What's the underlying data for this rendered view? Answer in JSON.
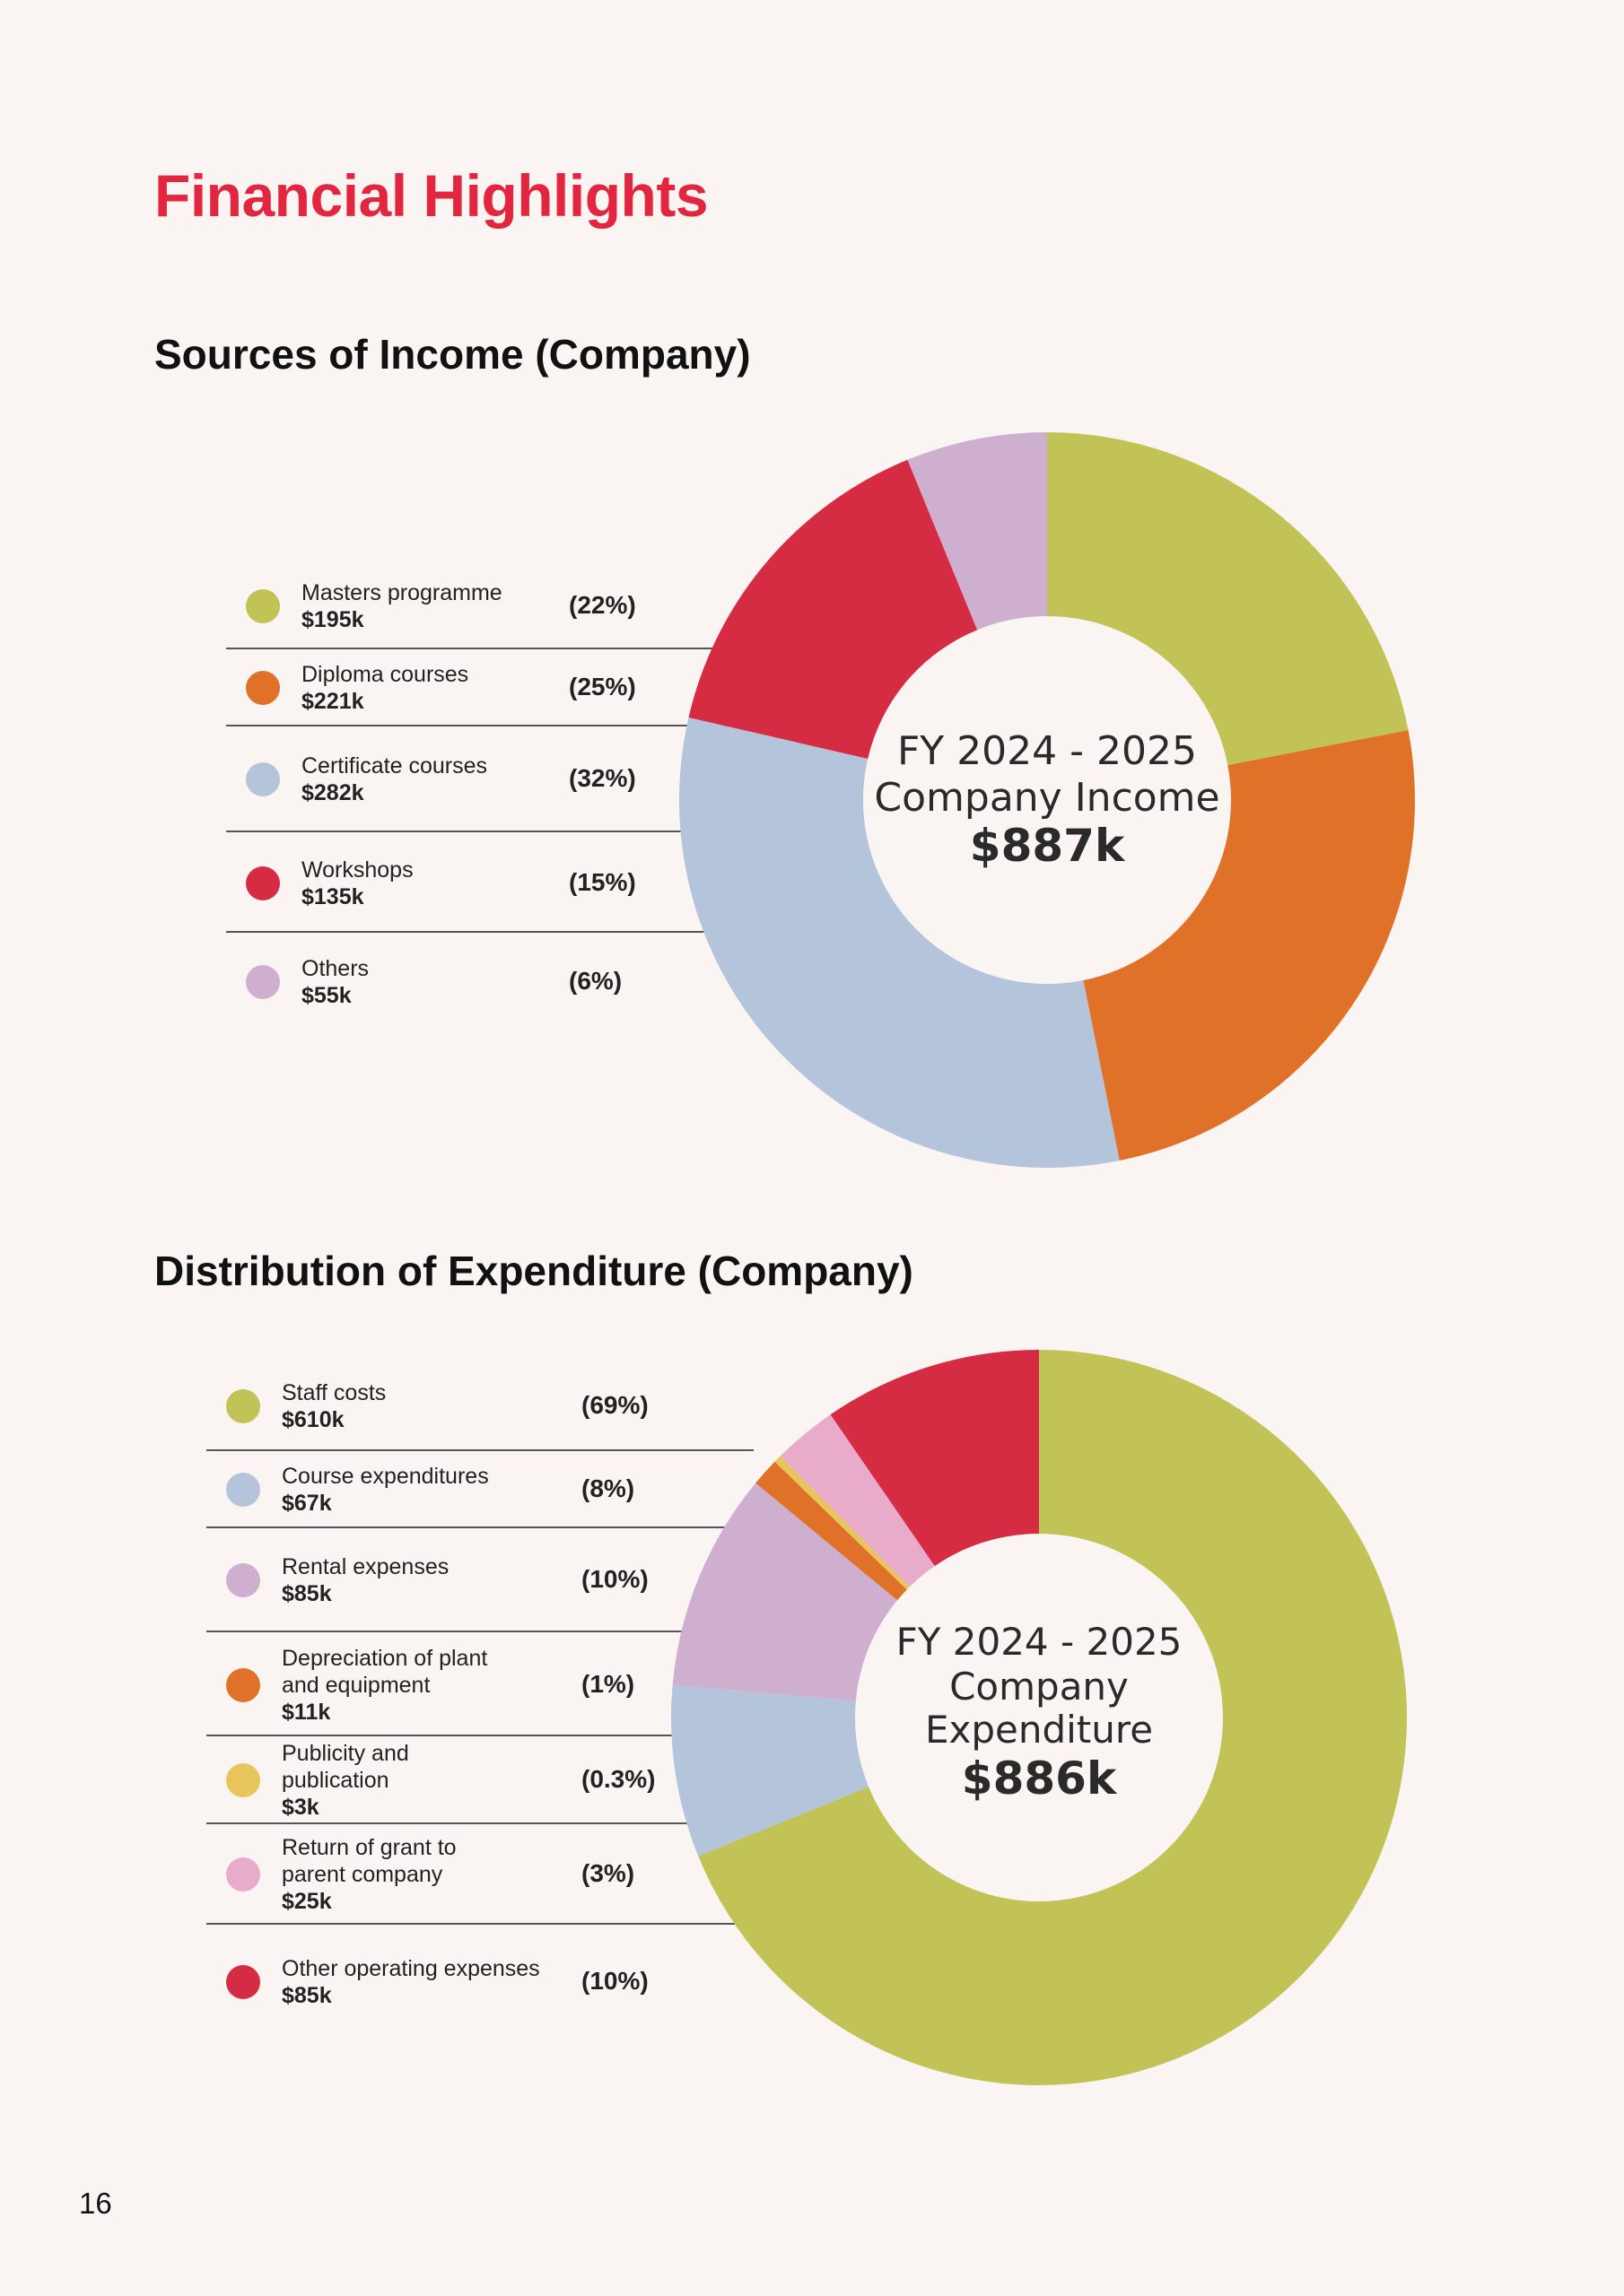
{
  "page": {
    "title": "Financial Highlights",
    "page_number": "16"
  },
  "chart_data": [
    {
      "type": "pie",
      "title": "Sources of Income (Company)",
      "center_lines": [
        "FY 2024 - 2025",
        "Company Income"
      ],
      "center_total": "$887k",
      "slices": [
        {
          "label": "Masters programme",
          "value": 195,
          "value_label": "$195k",
          "percent_label": "(22%)",
          "color": "#c1c356"
        },
        {
          "label": "Diploma courses",
          "value": 221,
          "value_label": "$221k",
          "percent_label": "(25%)",
          "color": "#df7128"
        },
        {
          "label": "Certificate courses",
          "value": 282,
          "value_label": "$282k",
          "percent_label": "(32%)",
          "color": "#b4c4da"
        },
        {
          "label": "Workshops",
          "value": 135,
          "value_label": "$135k",
          "percent_label": "(15%)",
          "color": "#d52c43"
        },
        {
          "label": "Others",
          "value": 55,
          "value_label": "$55k",
          "percent_label": "(6%)",
          "color": "#cfafcf"
        }
      ]
    },
    {
      "type": "pie",
      "title": "Distribution of Expenditure (Company)",
      "center_lines": [
        "FY 2024 - 2025",
        "Company",
        "Expenditure"
      ],
      "center_total": "$886k",
      "slices": [
        {
          "label": "Staff costs",
          "value": 610,
          "value_label": "$610k",
          "percent_label": "(69%)",
          "color": "#c1c356"
        },
        {
          "label": "Course expenditures",
          "value": 67,
          "value_label": "$67k",
          "percent_label": "(8%)",
          "color": "#b4c4da"
        },
        {
          "label": "Rental expenses",
          "value": 85,
          "value_label": "$85k",
          "percent_label": "(10%)",
          "color": "#cfafcf"
        },
        {
          "label": "Depreciation of plant and equipment",
          "value": 11,
          "value_label": "$11k",
          "percent_label": "(1%)",
          "color": "#df7128"
        },
        {
          "label": "Publicity and publication",
          "value": 3,
          "value_label": "$3k",
          "percent_label": "(0.3%)",
          "color": "#e8c45c"
        },
        {
          "label": "Return of grant to parent company",
          "value": 25,
          "value_label": "$25k",
          "percent_label": "(3%)",
          "color": "#e8abca"
        },
        {
          "label": "Other operating expenses",
          "value": 85,
          "value_label": "$85k",
          "percent_label": "(10%)",
          "color": "#d52c43"
        }
      ]
    }
  ]
}
